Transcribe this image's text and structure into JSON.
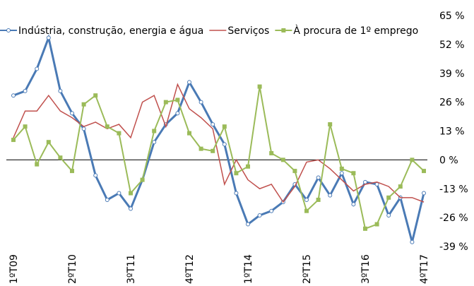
{
  "chart_data": {
    "type": "line",
    "categories": [
      "1ºT09",
      null,
      null,
      null,
      null,
      "2ºT10",
      null,
      null,
      null,
      null,
      "3ºT11",
      null,
      null,
      null,
      null,
      "4ºT12",
      null,
      null,
      null,
      null,
      "1ºT14",
      null,
      null,
      null,
      null,
      "2ºT15",
      null,
      null,
      null,
      null,
      "3ºT16",
      null,
      null,
      null,
      null,
      "4ºT17"
    ],
    "series": [
      {
        "name": "Indústria, construção, energia e água",
        "color": "#4a7ab5",
        "marker": "circle",
        "values": [
          29,
          31,
          41,
          55,
          31,
          21,
          14,
          -7,
          -18,
          -15,
          -22,
          -9,
          8,
          16,
          21,
          35,
          26,
          16,
          7,
          -15,
          -29,
          -25,
          -23,
          -19,
          -11,
          -18,
          -8,
          -16,
          -6,
          -20,
          -10,
          -11,
          -25,
          -17,
          -37,
          -15
        ]
      },
      {
        "name": "Serviços",
        "color": "#c0504d",
        "marker": "none",
        "values": [
          10,
          22,
          22,
          29,
          22,
          19,
          15,
          17,
          14,
          16,
          10,
          26,
          29,
          15,
          34,
          23,
          19,
          14,
          -11,
          0,
          -9,
          -13,
          -11,
          -19,
          -12,
          -1,
          0,
          -4,
          -9,
          -14,
          -11,
          -10,
          -12,
          -17,
          -17,
          -19
        ]
      },
      {
        "name": "À procura de 1º emprego",
        "color": "#9bbb59",
        "marker": "square",
        "values": [
          9,
          15,
          -2,
          8,
          1,
          -5,
          25,
          29,
          15,
          12,
          -15,
          -9,
          13,
          26,
          27,
          12,
          5,
          4,
          15,
          -6,
          -3,
          33,
          3,
          0,
          -5,
          -23,
          -18,
          16,
          -4,
          -6,
          -31,
          -29,
          -17,
          -12,
          0,
          -5
        ]
      }
    ],
    "ylim": [
      -39,
      65
    ],
    "yticks": [
      {
        "value": -39,
        "label": "-39 %"
      },
      {
        "value": -26,
        "label": "-26 %"
      },
      {
        "value": -13,
        "label": "-13 %"
      },
      {
        "value": 0,
        "label": "0 %"
      },
      {
        "value": 13,
        "label": "13 %"
      },
      {
        "value": 26,
        "label": "26 %"
      },
      {
        "value": 39,
        "label": "39 %"
      },
      {
        "value": 52,
        "label": "52 %"
      },
      {
        "value": 65,
        "label": "65 %"
      }
    ],
    "zero_line": true
  }
}
